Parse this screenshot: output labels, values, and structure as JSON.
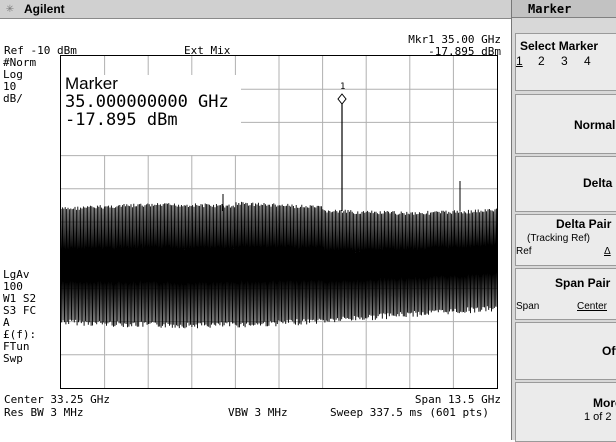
{
  "header": {
    "brand": "Agilent",
    "logo_icon": "agilent-spark-icon"
  },
  "status": {
    "ref": "Ref -10 dBm",
    "mix": "Ext Mix",
    "mkr_line1": "Mkr1  35.00 GHz",
    "mkr_line2": "-17.895 dBm",
    "left_labels": [
      "#Norm",
      "Log",
      "10",
      "dB/"
    ],
    "left_labels2": [
      "LgAv",
      "100",
      "W1  S2",
      "S3  FC",
      "A",
      "£(f):",
      "FTun",
      "Swp"
    ],
    "center": "Center 33.25 GHz",
    "span": "Span 13.5 GHz",
    "res_bw": "Res BW 3 MHz",
    "vbw": "VBW 3 MHz",
    "sweep": "Sweep 337.5 ms (601 pts)"
  },
  "marker_readout": {
    "title": "Marker",
    "freq": "35.000000000 GHz",
    "amp": "-17.895 dBm",
    "marker_label": "1"
  },
  "softkeys": {
    "menu_title": "Marker",
    "select_marker": {
      "label": "Select Marker",
      "options": [
        "1",
        "2",
        "3",
        "4"
      ]
    },
    "normal": "Normal",
    "delta": "Delta",
    "delta_pair": {
      "label": "Delta Pair",
      "sub": "(Tracking Ref)",
      "ref": "Ref",
      "delta": "Δ"
    },
    "span_pair": {
      "label": "Span Pair",
      "span": "Span",
      "center": "Center"
    },
    "off": "Off",
    "more": {
      "label": "More",
      "sub": "1 of 2"
    }
  },
  "colors": {
    "trace": "#000000",
    "background": "#ffffff",
    "softkey_bg": "#ebebeb"
  }
}
